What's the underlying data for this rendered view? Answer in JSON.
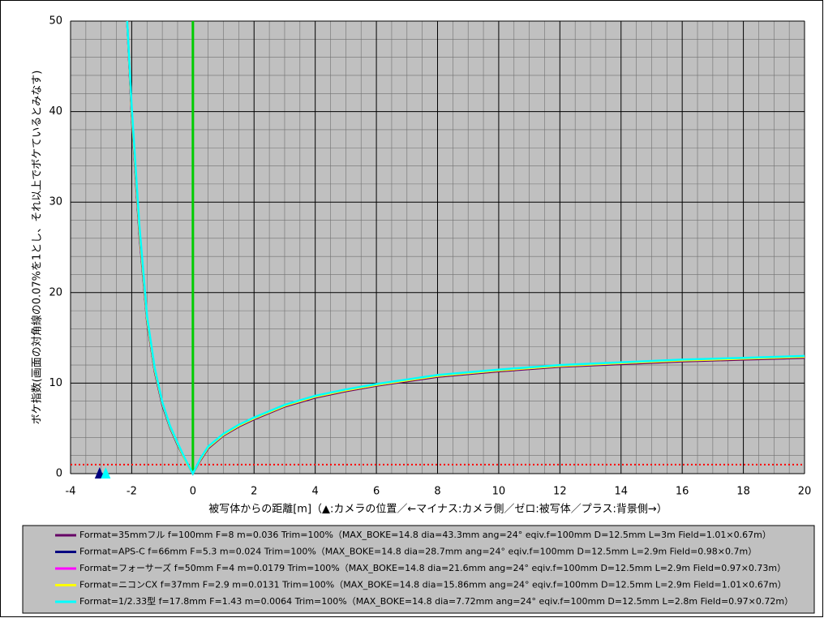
{
  "chart_data": {
    "type": "line",
    "xlabel": "被写体からの距離[m]（▲:カメラの位置／←マイナス:カメラ側／ゼロ:被写体／プラス:背景側→）",
    "ylabel": "ボケ指数(画面の対角線の0.07%を1とし、それ以上でボケているとみなす)",
    "x": [
      -2.15,
      -2,
      -1.75,
      -1.5,
      -1.25,
      -1,
      -0.75,
      -0.5,
      -0.25,
      0,
      0.25,
      0.5,
      1,
      1.5,
      2,
      3,
      4,
      5,
      6,
      8,
      10,
      12,
      14,
      16,
      18,
      20
    ],
    "series": [
      {
        "name": "Format=35mmフル f=100mm F=8 m=0.036 Trim=100%（MAX_BOKE=14.8 dia=43.3mm ang=24° eqiv.f=100mm D=12.5mm L=3m Field=1.01×0.67m）",
        "color": "#660066",
        "values": [
          50,
          39.5,
          26.5,
          16.8,
          11.3,
          7.6,
          5.1,
          3.2,
          1.5,
          0,
          1.5,
          2.8,
          4.2,
          5.2,
          6.0,
          7.4,
          8.4,
          9.1,
          9.7,
          10.7,
          11.3,
          11.8,
          12.1,
          12.4,
          12.6,
          12.8
        ]
      },
      {
        "name": "Format=APS-C f=66mm F=5.3 m=0.024 Trim=100%（MAX_BOKE=14.8 dia=28.7mm ang=24° eqiv.f=100mm D=12.5mm L=2.9m Field=0.98×0.7m）",
        "color": "#000080",
        "values": [
          50,
          39.8,
          26.8,
          17.0,
          11.4,
          7.7,
          5.1,
          3.2,
          1.5,
          0,
          1.6,
          2.9,
          4.3,
          5.3,
          6.1,
          7.5,
          8.5,
          9.2,
          9.8,
          10.8,
          11.4,
          11.9,
          12.2,
          12.5,
          12.7,
          12.9
        ]
      },
      {
        "name": "Format=フォーサーズ f=50mm F=4 m=0.0179 Trim=100%（MAX_BOKE=14.8 dia=21.6mm ang=24° eqiv.f=100mm D=12.5mm L=2.9m Field=0.97×0.73m）",
        "color": "#ff00ff",
        "values": [
          50,
          40,
          27,
          17.1,
          11.5,
          7.8,
          5.2,
          3.3,
          1.5,
          0,
          1.6,
          2.9,
          4.3,
          5.3,
          6.1,
          7.5,
          8.5,
          9.2,
          9.8,
          10.8,
          11.4,
          11.9,
          12.2,
          12.5,
          12.7,
          12.9
        ]
      },
      {
        "name": "Format=ニコンCX f=37mm F=2.9 m=0.0131 Trim=100%（MAX_BOKE=14.8 dia=15.86mm ang=24° eqiv.f=100mm D=12.5mm L=2.9m Field=1.01×0.67m）",
        "color": "#ffff00",
        "values": [
          50,
          40,
          27,
          17.1,
          11.5,
          7.8,
          5.2,
          3.3,
          1.5,
          0,
          1.6,
          2.9,
          4.3,
          5.3,
          6.1,
          7.5,
          8.5,
          9.2,
          9.8,
          10.8,
          11.4,
          11.9,
          12.2,
          12.5,
          12.7,
          12.9
        ]
      },
      {
        "name": "Format=1/2.33型 f=17.8mm F=1.43 m=0.0064 Trim=100%（MAX_BOKE=14.8 dia=7.72mm ang=24° eqiv.f=100mm D=12.5mm L=2.8m Field=0.97×0.72m）",
        "color": "#00ffff",
        "values": [
          50,
          40.5,
          27.5,
          17.4,
          11.7,
          7.9,
          5.3,
          3.4,
          1.6,
          0,
          1.7,
          3.0,
          4.4,
          5.4,
          6.2,
          7.6,
          8.6,
          9.3,
          9.9,
          10.9,
          11.5,
          12.0,
          12.3,
          12.6,
          12.8,
          13.0
        ]
      }
    ],
    "xlim": [
      -4,
      20
    ],
    "xticks": [
      -4,
      -2,
      0,
      2,
      4,
      6,
      8,
      10,
      12,
      14,
      16,
      18,
      20
    ],
    "ylim": [
      0,
      50
    ],
    "yticks": [
      0,
      10,
      20,
      30,
      40,
      50
    ],
    "grid": true,
    "vlines": [
      {
        "x": 0,
        "color": "#00cc00"
      }
    ],
    "hlines": [
      {
        "y": 1,
        "color": "#ff0000"
      }
    ],
    "markers": [
      {
        "x": -3.05,
        "color": "#000080"
      },
      {
        "x": -2.85,
        "color": "#00ffff"
      }
    ]
  }
}
